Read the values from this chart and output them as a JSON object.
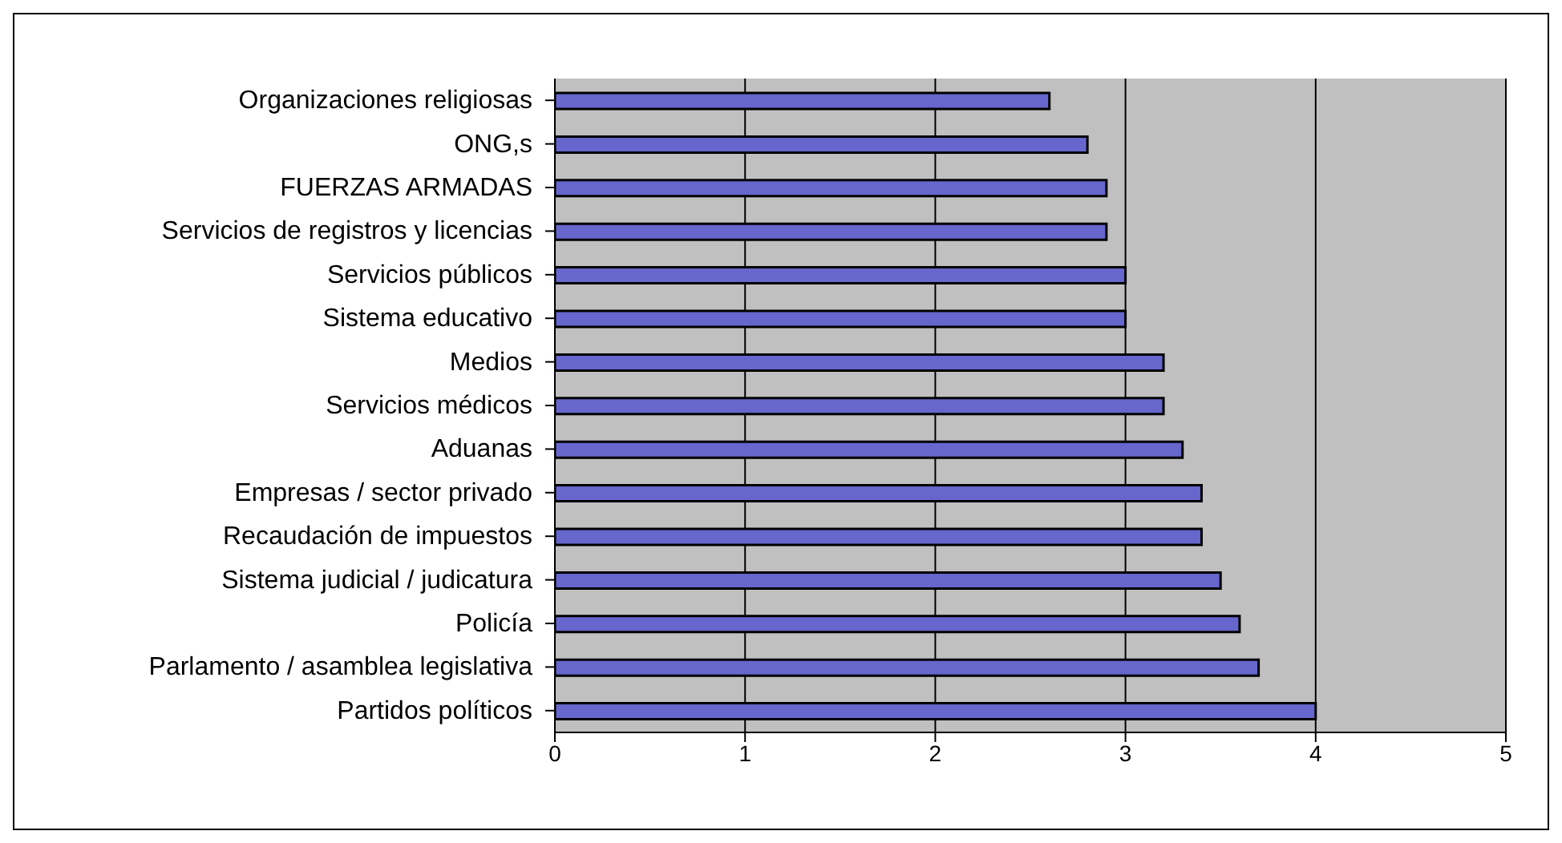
{
  "chart_data": {
    "type": "bar",
    "orientation": "horizontal",
    "categories": [
      "Organizaciones religiosas",
      "ONG,s",
      "FUERZAS ARMADAS",
      "Servicios de registros y licencias",
      "Servicios públicos",
      "Sistema educativo",
      "Medios",
      "Servicios médicos",
      "Aduanas",
      "Empresas / sector privado",
      "Recaudación de impuestos",
      "Sistema judicial / judicatura",
      "Policía",
      "Parlamento / asamblea legislativa",
      "Partidos políticos"
    ],
    "values": [
      2.6,
      2.8,
      2.9,
      2.9,
      3.0,
      3.0,
      3.2,
      3.2,
      3.3,
      3.4,
      3.4,
      3.5,
      3.6,
      3.7,
      4.0
    ],
    "color": "#6666cc",
    "xlim": [
      0,
      5
    ],
    "xticks": [
      0,
      1,
      2,
      3,
      4,
      5
    ],
    "grid": "x"
  }
}
